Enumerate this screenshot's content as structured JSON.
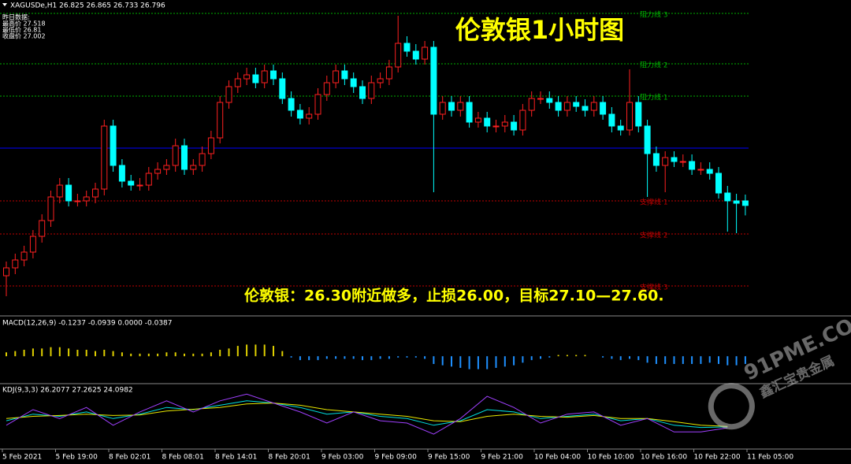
{
  "header": "XAGUSDe,H1  26.825 26.865 26.733 26.796",
  "info": [
    "昨日数据:",
    "最高价 27.518",
    "最低价 26.81",
    "收盘价 27.002"
  ],
  "watermark": [
    "91PME.COM",
    "鑫汇宝贵金属"
  ],
  "chart_data": [
    {
      "type": "candlestick",
      "title": "伦敦银1小时图",
      "annotation": "伦敦银：26.30附近做多，止损26.00，目标27.10—27.60.",
      "up_color": "#ff2020",
      "down_color": "#00ffff",
      "ylim": [
        26.1,
        28.1
      ],
      "open": [
        26.35,
        26.4,
        26.45,
        26.5,
        26.6,
        26.7,
        26.85,
        26.925,
        26.825,
        26.825,
        26.85,
        26.9,
        27.3,
        27.05,
        26.95,
        26.925,
        26.925,
        27.0,
        27.025,
        27.05,
        27.175,
        27.025,
        27.05,
        27.125,
        27.225,
        27.45,
        27.55,
        27.6,
        27.625,
        27.575,
        27.65,
        27.6,
        27.475,
        27.4,
        27.35,
        27.375,
        27.5,
        27.575,
        27.65,
        27.6,
        27.55,
        27.475,
        27.575,
        27.6,
        27.675,
        27.825,
        27.775,
        27.725,
        27.8,
        27.375,
        27.45,
        27.4,
        27.45,
        27.325,
        27.35,
        27.3,
        27.3,
        27.325,
        27.275,
        27.4,
        27.475,
        27.475,
        27.45,
        27.4,
        27.45,
        27.425,
        27.4,
        27.45,
        27.375,
        27.3,
        27.275,
        27.45,
        27.3,
        27.125,
        27.05,
        27.1,
        27.075,
        27.075,
        27.025,
        27.025,
        27.0,
        26.875,
        26.825,
        26.825
      ],
      "high": [
        26.44,
        26.49,
        26.54,
        26.64,
        26.74,
        26.89,
        26.97,
        26.97,
        26.87,
        26.89,
        26.94,
        27.34,
        27.34,
        27.09,
        26.99,
        26.97,
        27.04,
        27.07,
        27.09,
        27.22,
        27.22,
        27.09,
        27.17,
        27.27,
        27.49,
        27.59,
        27.64,
        27.67,
        27.67,
        27.69,
        27.69,
        27.64,
        27.52,
        27.44,
        27.42,
        27.54,
        27.62,
        27.69,
        27.69,
        27.64,
        27.59,
        27.62,
        27.64,
        27.72,
        28.0,
        27.87,
        27.82,
        27.84,
        27.84,
        27.49,
        27.49,
        27.49,
        27.49,
        27.39,
        27.39,
        27.34,
        27.37,
        27.37,
        27.44,
        27.52,
        27.52,
        27.52,
        27.49,
        27.49,
        27.49,
        27.47,
        27.49,
        27.49,
        27.42,
        27.34,
        27.66,
        27.49,
        27.34,
        27.17,
        27.14,
        27.14,
        27.12,
        27.12,
        27.07,
        27.07,
        27.04,
        26.92,
        26.87,
        26.865
      ],
      "low": [
        26.22,
        26.36,
        26.41,
        26.46,
        26.56,
        26.66,
        26.81,
        26.79,
        26.79,
        26.79,
        26.81,
        26.86,
        27.01,
        26.91,
        26.89,
        26.89,
        26.89,
        26.96,
        26.99,
        27.01,
        26.99,
        26.99,
        27.01,
        27.09,
        27.19,
        27.41,
        27.51,
        27.56,
        27.54,
        27.54,
        27.56,
        27.44,
        27.36,
        27.31,
        27.31,
        27.34,
        27.46,
        27.54,
        27.56,
        27.51,
        27.44,
        27.44,
        27.54,
        27.56,
        27.64,
        27.74,
        27.69,
        27.69,
        26.88,
        27.34,
        27.36,
        27.36,
        27.29,
        27.29,
        27.26,
        27.26,
        27.26,
        27.24,
        27.24,
        27.36,
        27.44,
        27.41,
        27.36,
        27.36,
        27.39,
        27.36,
        27.36,
        27.34,
        27.26,
        27.24,
        27.24,
        27.26,
        26.85,
        27.01,
        26.88,
        27.04,
        27.04,
        26.99,
        26.99,
        26.96,
        26.84,
        26.63,
        26.62,
        26.733
      ],
      "close": [
        26.4,
        26.45,
        26.5,
        26.6,
        26.7,
        26.85,
        26.925,
        26.825,
        26.825,
        26.85,
        26.9,
        27.3,
        27.05,
        26.95,
        26.925,
        26.925,
        27.0,
        27.025,
        27.05,
        27.175,
        27.025,
        27.05,
        27.125,
        27.225,
        27.45,
        27.55,
        27.6,
        27.625,
        27.575,
        27.65,
        27.6,
        27.475,
        27.4,
        27.35,
        27.375,
        27.5,
        27.575,
        27.65,
        27.6,
        27.55,
        27.475,
        27.575,
        27.6,
        27.675,
        27.825,
        27.775,
        27.725,
        27.8,
        27.375,
        27.45,
        27.4,
        27.45,
        27.325,
        27.35,
        27.3,
        27.3,
        27.325,
        27.275,
        27.4,
        27.475,
        27.475,
        27.45,
        27.4,
        27.45,
        27.425,
        27.4,
        27.45,
        27.375,
        27.3,
        27.275,
        27.45,
        27.3,
        27.125,
        27.05,
        27.1,
        27.075,
        27.075,
        27.025,
        27.025,
        27.0,
        26.875,
        26.825,
        26.81,
        26.796
      ],
      "levels": [
        {
          "name": "阻力线 3",
          "value": 28.015,
          "color": "#00b000"
        },
        {
          "name": "阻力线 2",
          "value": 27.695,
          "color": "#00b000"
        },
        {
          "name": "阻力线 1",
          "value": 27.49,
          "color": "#00b000"
        },
        {
          "value": 27.16,
          "color": "#0000ff"
        },
        {
          "name": "支撑线 1",
          "value": 26.825,
          "color": "#c00000"
        },
        {
          "name": "支撑线 2",
          "value": 26.615,
          "color": "#c00000"
        },
        {
          "name": "支撑线 3",
          "value": 26.285,
          "color": "#c00000"
        }
      ],
      "x_labels": [
        "5 Feb 2021",
        "5 Feb 19:00",
        "8 Feb 02:01",
        "8 Feb 08:01",
        "8 Feb 14:01",
        "8 Feb 20:01",
        "9 Feb 03:00",
        "9 Feb 09:00",
        "9 Feb 15:00",
        "9 Feb 21:00",
        "10 Feb 04:00",
        "10 Feb 10:00",
        "10 Feb 16:00",
        "10 Feb 22:00",
        "11 Feb 05:00"
      ]
    },
    {
      "type": "histogram",
      "title": "MACD(12,26,9) -0.1237 -0.0939 0.0000 -0.0387",
      "pos_color": "#e0d000",
      "neg_color": "#1e90ff",
      "ylim": [
        -0.2,
        0.3
      ],
      "values": [
        0.03,
        0.04,
        0.05,
        0.06,
        0.06,
        0.07,
        0.07,
        0.06,
        0.05,
        0.05,
        0.04,
        0.05,
        0.04,
        0.03,
        0.02,
        0.02,
        0.02,
        0.02,
        0.03,
        0.03,
        0.02,
        0.02,
        0.02,
        0.03,
        0.05,
        0.06,
        0.08,
        0.09,
        0.09,
        0.09,
        0.08,
        0.04,
        -0.01,
        -0.03,
        -0.03,
        -0.03,
        -0.02,
        -0.02,
        -0.02,
        -0.02,
        -0.03,
        -0.03,
        -0.02,
        -0.02,
        -0.01,
        -0.01,
        -0.01,
        -0.02,
        -0.06,
        -0.07,
        -0.08,
        -0.09,
        -0.1,
        -0.1,
        -0.1,
        -0.09,
        -0.08,
        -0.07,
        -0.05,
        -0.03,
        -0.02,
        -0.01,
        0.01,
        0.01,
        0.01,
        0.01,
        0,
        -0.01,
        -0.02,
        -0.03,
        -0.02,
        -0.03,
        -0.05,
        -0.06,
        -0.06,
        -0.06,
        -0.06,
        -0.06,
        -0.06,
        -0.05,
        -0.06,
        -0.07,
        -0.07,
        -0.06
      ]
    },
    {
      "type": "line",
      "title": "KDJ(9,3,3) 26.2077 27.2625 24.0982",
      "ylim": [
        -20,
        120
      ],
      "x": [
        0,
        3,
        6,
        9,
        12,
        15,
        18,
        21,
        24,
        27,
        30,
        33,
        36,
        39,
        42,
        45,
        48,
        51,
        54,
        57,
        60,
        63,
        66,
        69,
        72,
        75,
        78,
        81
      ],
      "series": [
        {
          "color": "#00e0e0",
          "values": [
            40,
            55,
            50,
            60,
            45,
            55,
            70,
            65,
            75,
            85,
            80,
            70,
            55,
            60,
            50,
            45,
            30,
            40,
            65,
            60,
            45,
            50,
            55,
            40,
            45,
            30,
            25,
            26.2077
          ]
        },
        {
          "color": "#e8e800",
          "values": [
            45,
            50,
            52,
            55,
            52,
            53,
            62,
            66,
            70,
            78,
            80,
            75,
            65,
            60,
            55,
            50,
            40,
            38,
            50,
            55,
            50,
            48,
            52,
            45,
            45,
            38,
            30,
            27.2625
          ]
        },
        {
          "color": "#a040ff",
          "values": [
            30,
            65,
            45,
            70,
            30,
            60,
            85,
            60,
            85,
            100,
            80,
            60,
            35,
            60,
            40,
            35,
            10,
            45,
            95,
            70,
            35,
            55,
            60,
            30,
            45,
            15,
            15,
            24.0982
          ]
        }
      ]
    }
  ]
}
